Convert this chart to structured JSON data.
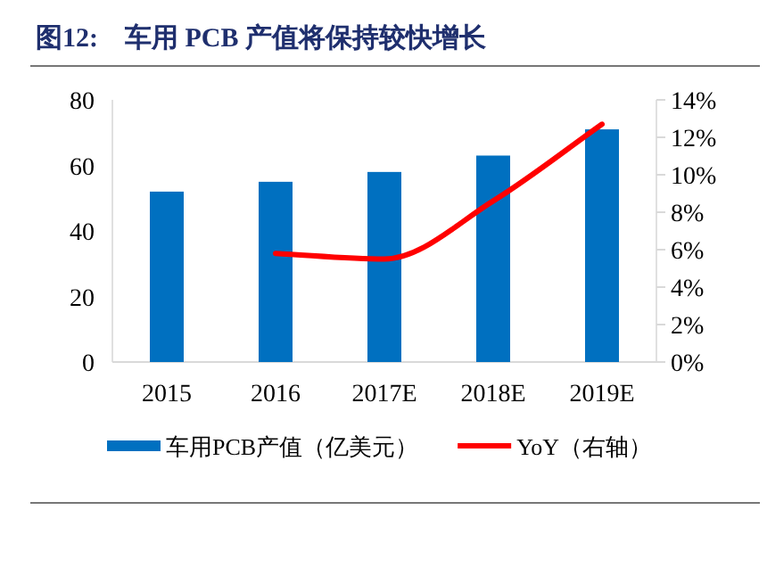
{
  "chart_data": {
    "type": "bar",
    "title": "图12:　车用 PCB 产值将保持较快增长",
    "categories": [
      "2015",
      "2016",
      "2017E",
      "2018E",
      "2019E"
    ],
    "series": [
      {
        "name": "车用PCB产值（亿美元）",
        "color": "#0070c0",
        "values": [
          52,
          55,
          58,
          63,
          71
        ]
      },
      {
        "name": "YoY（右轴）",
        "type": "line",
        "axis": "y2",
        "color": "#ff0000",
        "values": [
          null,
          5.8,
          5.5,
          8.6,
          12.7
        ]
      }
    ],
    "ylim": [
      0,
      80
    ],
    "yticks": [
      0,
      20,
      40,
      60,
      80
    ],
    "y2lim": [
      0,
      14
    ],
    "y2ticks": [
      {
        "value": 0,
        "label": "0%"
      },
      {
        "value": 2,
        "label": "2%"
      },
      {
        "value": 4,
        "label": "4%"
      },
      {
        "value": 6,
        "label": "6%"
      },
      {
        "value": 8,
        "label": "8%"
      },
      {
        "value": 10,
        "label": "10%"
      },
      {
        "value": 12,
        "label": "12%"
      },
      {
        "value": 14,
        "label": "14%"
      }
    ],
    "grid": false,
    "legend": "bottom",
    "marker": "none",
    "line_style": "solid"
  }
}
